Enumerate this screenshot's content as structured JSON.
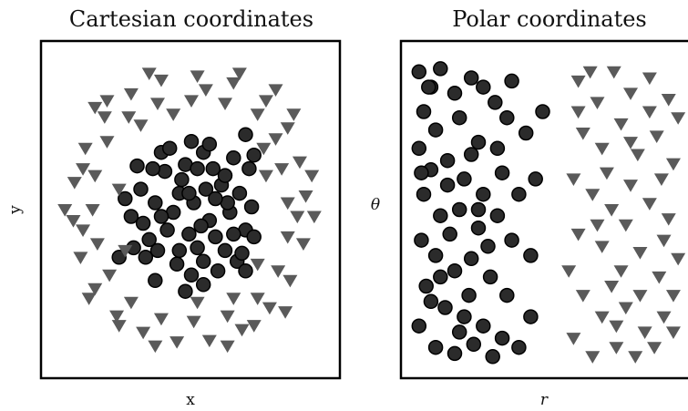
{
  "chart_data": [
    {
      "type": "scatter",
      "title": "Cartesian coordinates",
      "xlabel": "x",
      "ylabel": "y",
      "xlim": [
        -1.15,
        1.15
      ],
      "ylim": [
        -1.15,
        1.15
      ],
      "grid": false,
      "legend": "none",
      "series": [
        {
          "marker": "circle",
          "color": "#2b2b2b",
          "points": [
            [
              0.02,
              0.05
            ],
            [
              -0.1,
              0.12
            ],
            [
              0.15,
              -0.08
            ],
            [
              -0.2,
              -0.15
            ],
            [
              0.25,
              0.18
            ],
            [
              -0.3,
              0.05
            ],
            [
              0.05,
              -0.28
            ],
            [
              0.32,
              -0.02
            ],
            [
              -0.05,
              0.33
            ],
            [
              0.18,
              0.3
            ],
            [
              -0.22,
              0.28
            ],
            [
              -0.35,
              -0.22
            ],
            [
              0.28,
              -0.3
            ],
            [
              0.4,
              0.12
            ],
            [
              -0.42,
              0.15
            ],
            [
              0.1,
              0.42
            ],
            [
              -0.12,
              -0.4
            ],
            [
              0.45,
              -0.15
            ],
            [
              -0.38,
              -0.35
            ],
            [
              0.35,
              0.38
            ],
            [
              -0.25,
              0.42
            ],
            [
              0.22,
              -0.45
            ],
            [
              0.5,
              0.02
            ],
            [
              -0.5,
              -0.05
            ],
            [
              0.0,
              0.5
            ],
            [
              0.0,
              -0.48
            ],
            [
              0.12,
              0.15
            ],
            [
              -0.15,
              -0.02
            ],
            [
              0.08,
              -0.12
            ],
            [
              -0.08,
              0.22
            ],
            [
              0.3,
              0.05
            ],
            [
              -0.28,
              -0.3
            ],
            [
              0.2,
              -0.2
            ],
            [
              -0.02,
              -0.18
            ],
            [
              0.38,
              -0.38
            ],
            [
              -0.45,
              0.32
            ],
            [
              0.48,
              0.3
            ],
            [
              -0.18,
              0.45
            ],
            [
              0.15,
              0.48
            ],
            [
              -0.48,
              -0.28
            ],
            [
              0.42,
              -0.32
            ],
            [
              0.52,
              -0.2
            ],
            [
              -0.55,
              0.08
            ],
            [
              0.05,
              0.3
            ],
            [
              -0.32,
              0.3
            ],
            [
              0.28,
              0.25
            ],
            [
              -0.1,
              -0.3
            ],
            [
              0.1,
              -0.38
            ],
            [
              -0.4,
              -0.1
            ],
            [
              0.35,
              -0.18
            ],
            [
              -0.6,
              -0.35
            ],
            [
              0.1,
              -0.55
            ],
            [
              0.45,
              -0.45
            ],
            [
              -0.3,
              -0.52
            ],
            [
              -0.05,
              -0.6
            ],
            [
              0.52,
              0.4
            ],
            [
              0.45,
              0.55
            ],
            [
              -0.02,
              0.12
            ],
            [
              0.2,
              0.08
            ],
            [
              -0.25,
              -0.05
            ]
          ]
        },
        {
          "marker": "triangle-down",
          "color": "#5a5a5a",
          "points": [
            [
              0.95,
              0.1
            ],
            [
              0.9,
              0.35
            ],
            [
              0.8,
              0.6
            ],
            [
              0.62,
              0.8
            ],
            [
              0.35,
              0.93
            ],
            [
              0.05,
              0.98
            ],
            [
              -0.25,
              0.95
            ],
            [
              -0.5,
              0.85
            ],
            [
              -0.72,
              0.68
            ],
            [
              -0.88,
              0.45
            ],
            [
              -0.97,
              0.2
            ],
            [
              -0.98,
              -0.08
            ],
            [
              -0.92,
              -0.35
            ],
            [
              -0.8,
              -0.58
            ],
            [
              -0.62,
              -0.78
            ],
            [
              -0.4,
              -0.9
            ],
            [
              -0.12,
              -0.97
            ],
            [
              0.15,
              -0.96
            ],
            [
              0.42,
              -0.88
            ],
            [
              0.65,
              -0.72
            ],
            [
              0.82,
              -0.52
            ],
            [
              0.93,
              -0.25
            ],
            [
              0.75,
              0.3
            ],
            [
              0.7,
              0.52
            ],
            [
              0.55,
              0.7
            ],
            [
              0.28,
              0.78
            ],
            [
              0.0,
              0.8
            ],
            [
              -0.28,
              0.78
            ],
            [
              -0.52,
              0.68
            ],
            [
              -0.7,
              0.5
            ],
            [
              -0.8,
              0.25
            ],
            [
              -0.82,
              0.0
            ],
            [
              -0.78,
              -0.25
            ],
            [
              -0.68,
              -0.48
            ],
            [
              -0.5,
              -0.68
            ],
            [
              -0.25,
              -0.8
            ],
            [
              0.02,
              -0.82
            ],
            [
              0.3,
              -0.78
            ],
            [
              0.55,
              -0.65
            ],
            [
              0.72,
              -0.45
            ],
            [
              0.8,
              -0.2
            ],
            [
              0.8,
              0.05
            ],
            [
              1.02,
              -0.05
            ],
            [
              1.0,
              0.25
            ],
            [
              0.7,
              0.88
            ],
            [
              0.4,
              1.0
            ],
            [
              -0.35,
              1.0
            ],
            [
              -0.8,
              0.75
            ],
            [
              -1.05,
              0.0
            ],
            [
              -0.85,
              -0.65
            ],
            [
              -0.3,
              -1.0
            ],
            [
              0.3,
              -1.0
            ],
            [
              0.78,
              -0.75
            ],
            [
              0.62,
              0.25
            ],
            [
              -0.6,
              0.15
            ],
            [
              -0.55,
              -0.3
            ],
            [
              0.55,
              -0.4
            ],
            [
              0.6,
              0.45
            ],
            [
              -0.42,
              0.62
            ],
            [
              0.05,
              -0.68
            ],
            [
              -0.15,
              0.7
            ],
            [
              0.35,
              -0.65
            ],
            [
              0.88,
              -0.05
            ],
            [
              -0.9,
              0.3
            ],
            [
              -0.9,
              -0.15
            ],
            [
              0.12,
              0.88
            ],
            [
              -0.6,
              -0.85
            ],
            [
              0.52,
              -0.85
            ],
            [
              0.85,
              0.7
            ],
            [
              -0.7,
              0.8
            ]
          ]
        }
      ]
    },
    {
      "type": "scatter",
      "title": "Polar coordinates",
      "xlabel": "r",
      "ylabel": "θ",
      "xlim": [
        0,
        1.15
      ],
      "ylim": [
        0,
        1
      ],
      "grid": false,
      "legend": "none",
      "series": [
        {
          "marker": "circle",
          "color": "#2b2b2b",
          "points": [
            [
              0.03,
              0.95
            ],
            [
              0.08,
              0.9
            ],
            [
              0.12,
              0.96
            ],
            [
              0.18,
              0.88
            ],
            [
              0.25,
              0.93
            ],
            [
              0.05,
              0.82
            ],
            [
              0.1,
              0.76
            ],
            [
              0.2,
              0.8
            ],
            [
              0.28,
              0.72
            ],
            [
              0.35,
              0.85
            ],
            [
              0.03,
              0.7
            ],
            [
              0.08,
              0.63
            ],
            [
              0.15,
              0.66
            ],
            [
              0.22,
              0.6
            ],
            [
              0.3,
              0.55
            ],
            [
              0.38,
              0.62
            ],
            [
              0.05,
              0.55
            ],
            [
              0.12,
              0.48
            ],
            [
              0.2,
              0.5
            ],
            [
              0.28,
              0.44
            ],
            [
              0.36,
              0.48
            ],
            [
              0.42,
              0.4
            ],
            [
              0.04,
              0.4
            ],
            [
              0.1,
              0.35
            ],
            [
              0.18,
              0.3
            ],
            [
              0.25,
              0.34
            ],
            [
              0.33,
              0.28
            ],
            [
              0.4,
              0.22
            ],
            [
              0.06,
              0.25
            ],
            [
              0.14,
              0.18
            ],
            [
              0.22,
              0.15
            ],
            [
              0.3,
              0.12
            ],
            [
              0.38,
              0.08
            ],
            [
              0.03,
              0.12
            ],
            [
              0.1,
              0.05
            ],
            [
              0.18,
              0.03
            ],
            [
              0.26,
              0.06
            ],
            [
              0.34,
              0.02
            ],
            [
              0.45,
              0.05
            ],
            [
              0.48,
              0.75
            ],
            [
              0.45,
              0.55
            ],
            [
              0.5,
              0.35
            ],
            [
              0.42,
              0.92
            ],
            [
              0.15,
              0.58
            ],
            [
              0.25,
              0.68
            ],
            [
              0.08,
              0.2
            ],
            [
              0.32,
              0.38
            ],
            [
              0.16,
              0.42
            ],
            [
              0.4,
              0.8
            ],
            [
              0.2,
              0.1
            ],
            [
              0.55,
              0.82
            ],
            [
              0.52,
              0.6
            ],
            [
              0.5,
              0.15
            ],
            [
              0.07,
              0.9
            ],
            [
              0.3,
              0.9
            ],
            [
              0.12,
              0.28
            ],
            [
              0.24,
              0.22
            ],
            [
              0.36,
              0.7
            ],
            [
              0.04,
              0.62
            ],
            [
              0.28,
              0.5
            ]
          ]
        },
        {
          "marker": "triangle-down",
          "color": "#5a5a5a",
          "points": [
            [
              0.7,
              0.92
            ],
            [
              0.78,
              0.85
            ],
            [
              0.85,
              0.95
            ],
            [
              0.92,
              0.88
            ],
            [
              1.0,
              0.93
            ],
            [
              1.08,
              0.86
            ],
            [
              0.72,
              0.75
            ],
            [
              0.8,
              0.7
            ],
            [
              0.88,
              0.78
            ],
            [
              0.95,
              0.68
            ],
            [
              1.03,
              0.74
            ],
            [
              1.1,
              0.65
            ],
            [
              0.68,
              0.6
            ],
            [
              0.76,
              0.55
            ],
            [
              0.84,
              0.5
            ],
            [
              0.92,
              0.58
            ],
            [
              1.0,
              0.52
            ],
            [
              1.08,
              0.47
            ],
            [
              0.7,
              0.42
            ],
            [
              0.8,
              0.38
            ],
            [
              0.88,
              0.3
            ],
            [
              0.96,
              0.36
            ],
            [
              1.04,
              0.28
            ],
            [
              1.12,
              0.34
            ],
            [
              0.72,
              0.22
            ],
            [
              0.8,
              0.15
            ],
            [
              0.9,
              0.18
            ],
            [
              0.98,
              0.1
            ],
            [
              1.06,
              0.15
            ],
            [
              0.68,
              0.08
            ],
            [
              0.76,
              0.02
            ],
            [
              0.86,
              0.05
            ],
            [
              0.94,
              0.02
            ],
            [
              1.02,
              0.05
            ],
            [
              1.1,
              0.1
            ],
            [
              1.12,
              0.8
            ],
            [
              0.75,
              0.95
            ],
            [
              0.82,
              0.62
            ],
            [
              0.9,
              0.45
            ],
            [
              1.05,
              0.6
            ],
            [
              1.1,
              0.22
            ],
            [
              0.66,
              0.3
            ],
            [
              0.84,
              0.25
            ],
            [
              0.92,
              0.72
            ],
            [
              1.0,
              0.82
            ],
            [
              0.7,
              0.82
            ],
            [
              0.78,
              0.45
            ],
            [
              0.96,
              0.22
            ],
            [
              1.06,
              0.4
            ],
            [
              0.86,
              0.12
            ]
          ]
        }
      ]
    }
  ]
}
